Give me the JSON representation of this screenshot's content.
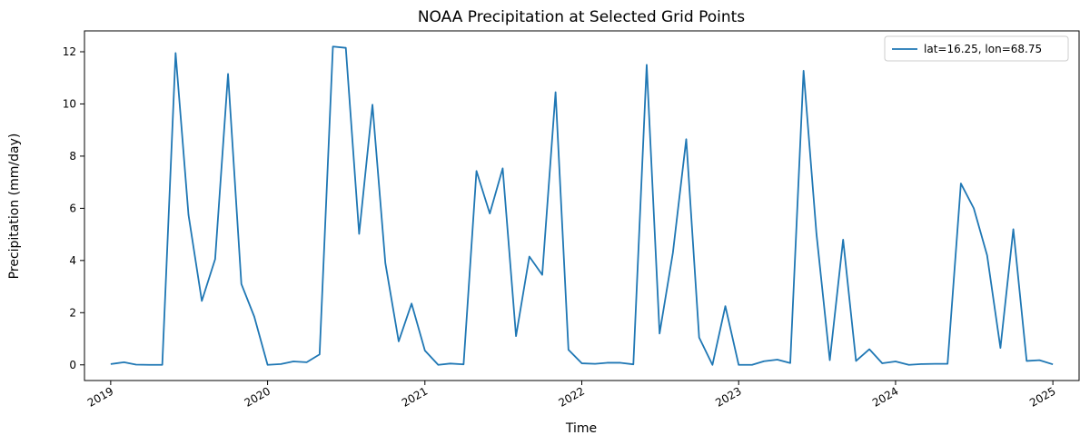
{
  "chart_data": {
    "type": "line",
    "title": "NOAA Precipitation at Selected Grid Points",
    "xlabel": "Time",
    "ylabel": "Precipitation (mm/day)",
    "xlim": [
      "2018-11-01",
      "2025-03-03"
    ],
    "ylim": [
      -0.6,
      12.8
    ],
    "x_ticks": [
      "2019",
      "2020",
      "2021",
      "2022",
      "2023",
      "2024",
      "2025"
    ],
    "y_ticks": [
      "0",
      "2",
      "4",
      "6",
      "8",
      "10",
      "12"
    ],
    "grid": false,
    "legend": "top-right",
    "color": "#1f77b4",
    "series": [
      {
        "name": "lat=16.25, lon=68.75",
        "x": [
          "2019-01-01",
          "2019-02-01",
          "2019-03-01",
          "2019-04-01",
          "2019-05-01",
          "2019-06-01",
          "2019-07-01",
          "2019-08-01",
          "2019-09-01",
          "2019-10-01",
          "2019-11-01",
          "2019-12-01",
          "2020-01-01",
          "2020-02-01",
          "2020-03-01",
          "2020-04-01",
          "2020-05-01",
          "2020-06-01",
          "2020-07-01",
          "2020-08-01",
          "2020-09-01",
          "2020-10-01",
          "2020-11-01",
          "2020-12-01",
          "2021-01-01",
          "2021-02-01",
          "2021-03-01",
          "2021-04-01",
          "2021-05-01",
          "2021-06-01",
          "2021-07-01",
          "2021-08-01",
          "2021-09-01",
          "2021-10-01",
          "2021-11-01",
          "2021-12-01",
          "2022-01-01",
          "2022-02-01",
          "2022-03-01",
          "2022-04-01",
          "2022-05-01",
          "2022-06-01",
          "2022-07-01",
          "2022-08-01",
          "2022-09-01",
          "2022-10-01",
          "2022-11-01",
          "2022-12-01",
          "2023-01-01",
          "2023-02-01",
          "2023-03-01",
          "2023-04-01",
          "2023-05-01",
          "2023-06-01",
          "2023-07-01",
          "2023-08-01",
          "2023-09-01",
          "2023-10-01",
          "2023-11-01",
          "2023-12-01",
          "2024-01-01",
          "2024-02-01",
          "2024-03-01",
          "2024-04-01",
          "2024-05-01",
          "2024-06-01",
          "2024-07-01",
          "2024-08-01",
          "2024-09-01",
          "2024-10-01",
          "2024-11-01",
          "2024-12-01",
          "2025-01-01"
        ],
        "values": [
          0.03,
          0.1,
          0.01,
          0.0,
          0.0,
          11.95,
          5.75,
          2.45,
          4.05,
          11.15,
          3.1,
          1.85,
          0.0,
          0.03,
          0.13,
          0.1,
          0.4,
          12.2,
          12.15,
          5.02,
          9.97,
          3.9,
          0.9,
          2.35,
          0.55,
          0.0,
          0.05,
          0.02,
          7.43,
          5.8,
          7.53,
          1.1,
          4.15,
          3.45,
          10.45,
          0.58,
          0.06,
          0.04,
          0.08,
          0.08,
          0.02,
          11.5,
          1.2,
          4.3,
          8.65,
          1.05,
          0.0,
          2.25,
          0.0,
          0.0,
          0.14,
          0.2,
          0.07,
          11.27,
          5.02,
          0.18,
          4.8,
          0.15,
          0.6,
          0.06,
          0.13,
          0.0,
          0.03,
          0.04,
          0.04,
          6.95,
          6.0,
          4.2,
          0.65,
          5.2,
          0.15,
          0.18,
          0.02
        ]
      }
    ]
  }
}
